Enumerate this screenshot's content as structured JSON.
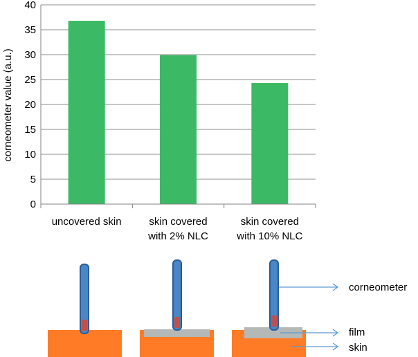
{
  "chart_data": {
    "type": "bar",
    "title": "",
    "xlabel": "",
    "ylabel": "corneometer value (a.u.)",
    "ylim": [
      0,
      40
    ],
    "yticks": [
      0,
      5,
      10,
      15,
      20,
      25,
      30,
      35,
      40
    ],
    "grid": true,
    "legend": "none",
    "categories": [
      [
        "uncovered skin"
      ],
      [
        "skin covered",
        "with 2% NLC"
      ],
      [
        "skin covered",
        "with 10% NLC"
      ]
    ],
    "values": [
      36.8,
      29.9,
      24.3
    ],
    "bar_color": "#3cb964"
  },
  "diagram": {
    "labels": {
      "corneometer": "corneometer",
      "film": "film",
      "skin": "skin"
    },
    "colors": {
      "skin": "#ff7b25",
      "film": "#b4b8b6",
      "probe": "#4a86c8",
      "probe_outline": "#2a5d97",
      "probe_tip": "#c0504d",
      "arrow": "#5a9bd5"
    }
  }
}
